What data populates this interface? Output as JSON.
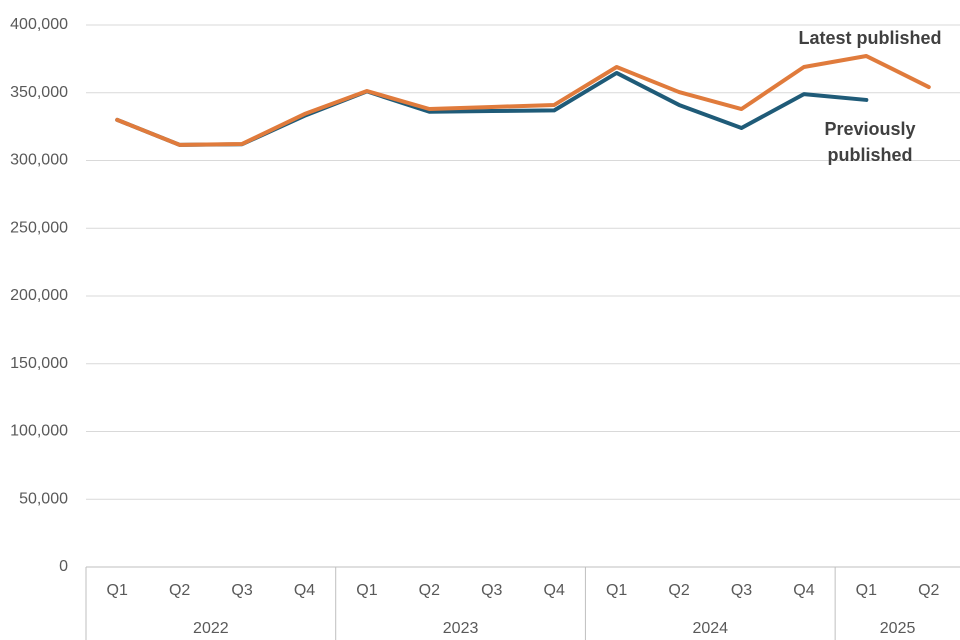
{
  "chart_data": {
    "type": "line",
    "categories": [
      "Q1",
      "Q2",
      "Q3",
      "Q4",
      "Q1",
      "Q2",
      "Q3",
      "Q4",
      "Q1",
      "Q2",
      "Q3",
      "Q4",
      "Q1",
      "Q2"
    ],
    "category_groups": [
      {
        "label": "2022",
        "count": 4
      },
      {
        "label": "2023",
        "count": 4
      },
      {
        "label": "2024",
        "count": 4
      },
      {
        "label": "2025",
        "count": 2
      }
    ],
    "series": [
      {
        "name": "Previously published",
        "color": "#1f5b78",
        "values": [
          330000,
          311500,
          312000,
          333000,
          351000,
          336000,
          336500,
          337000,
          364600,
          341000,
          324000,
          349000,
          344700,
          null
        ]
      },
      {
        "name": "Latest published",
        "color": "#e07b3c",
        "values": [
          330000,
          311500,
          312200,
          334300,
          351300,
          338000,
          339500,
          341000,
          369000,
          350500,
          338000,
          369000,
          377100,
          354200
        ]
      }
    ],
    "ylim": [
      0,
      400000
    ],
    "yticks": [
      {
        "value": 0,
        "label": "0"
      },
      {
        "value": 50000,
        "label": "50,000"
      },
      {
        "value": 100000,
        "label": "100,000"
      },
      {
        "value": 150000,
        "label": "150,000"
      },
      {
        "value": 200000,
        "label": "200,000"
      },
      {
        "value": 250000,
        "label": "250,000"
      },
      {
        "value": 300000,
        "label": "300,000"
      },
      {
        "value": 350000,
        "label": "350,000"
      },
      {
        "value": 400000,
        "label": "400,000"
      }
    ],
    "grid": true
  }
}
